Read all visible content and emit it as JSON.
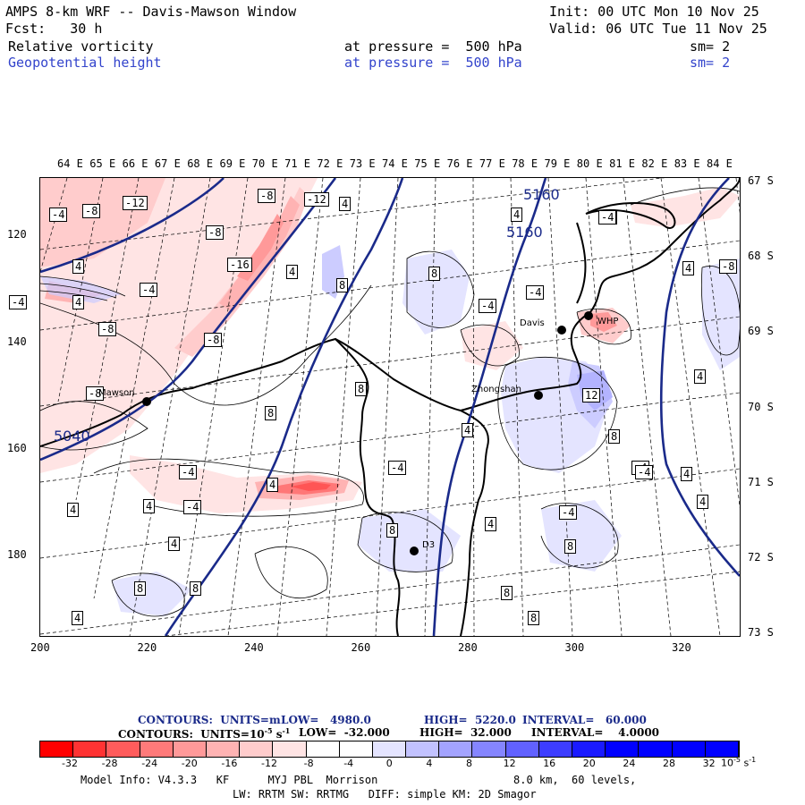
{
  "header": {
    "title": "AMPS 8-km WRF -- Davis-Mawson Window",
    "init": "Init: 00 UTC Mon 10 Nov 25",
    "fcst": "Fcst:   30 h",
    "valid": "Valid: 06 UTC Tue 11 Nov 25",
    "field1": "Relative vorticity",
    "field1_pressure": "at pressure =  500 hPa",
    "field1_sm": "sm= 2",
    "field2": "Geopotential height",
    "field2_pressure": "at pressure =  500 hPa",
    "field2_sm": "sm= 2"
  },
  "top_longitudes": [
    "64 E",
    "65 E",
    "66 E",
    "67 E",
    "68 E",
    "69 E",
    "70 E",
    "71 E",
    "72 E",
    "73 E",
    "74 E",
    "75 E",
    "76 E",
    "77 E",
    "78 E",
    "79 E",
    "80 E",
    "81 E",
    "82 E",
    "83 E",
    "84 E"
  ],
  "right_latitudes": [
    "67 S",
    "68 S",
    "69 S",
    "70 S",
    "71 S",
    "72 S",
    "73 S"
  ],
  "left_y_ticks": [
    "120",
    "140",
    "160",
    "180"
  ],
  "bottom_x_ticks": [
    "200",
    "220",
    "240",
    "260",
    "280",
    "300",
    "320"
  ],
  "stations": {
    "mawson": "Mawson",
    "davis": "Davis",
    "zhongshan": "Zhongshan",
    "whp": "WHP",
    "d3": "D3"
  },
  "height_labels": [
    "5160",
    "5160",
    "5040"
  ],
  "contour_labels": [
    "-4",
    "-8",
    "-12",
    "-8",
    "-12",
    "-8",
    "4",
    "4",
    "-4",
    "4",
    "-4",
    "-8",
    "-16",
    "4",
    "8",
    "8",
    "-4",
    "-4",
    "-8",
    "-8",
    "4",
    "-4",
    "-4",
    "4",
    "-4",
    "8",
    "8",
    "4",
    "4",
    "-4",
    "8",
    "12",
    "4",
    "8",
    "-4",
    "4",
    "4",
    "-4",
    "-8",
    "-4",
    "4",
    "8",
    "4",
    "-4",
    "8",
    "4",
    "8",
    "8",
    "8",
    "4",
    "4"
  ],
  "legend": {
    "line1": {
      "label": "CONTOURS:  UNITS=m",
      "low": "LOW=   4980.0",
      "high": "HIGH=  5220.0",
      "interval": "INTERVAL=   60.000"
    },
    "line2": {
      "label": "CONTOURS:  UNITS=10",
      "exp": "-5",
      "unit": "s",
      "uexp": "-1",
      "low": "LOW=  -32.000",
      "high": "HIGH=  32.000",
      "interval": "INTERVAL=    4.0000"
    },
    "colorbar_labels": [
      "-32",
      "-28",
      "-24",
      "-20",
      "-16",
      "-12",
      "-8",
      "-4",
      "0",
      "4",
      "8",
      "12",
      "16",
      "20",
      "24",
      "28",
      "32"
    ],
    "colorbar_unit": "10",
    "colorbar_unit_exp1": "-5",
    "colorbar_unit_s": "s",
    "colorbar_unit_exp2": "-1",
    "colors": [
      "#ff0000",
      "#ff3030",
      "#ff5555",
      "#ff7777",
      "#ff9999",
      "#ffb3b3",
      "#ffcccc",
      "#ffe4e4",
      "#ffffff",
      "#ffffff",
      "#e4e4ff",
      "#ccccff",
      "#b3b3ff",
      "#9999ff",
      "#7777ff",
      "#4444ff",
      "#0000ff"
    ]
  },
  "model_info": {
    "line1": "Model Info: V4.3.3   KF      MYJ PBL  Morrison",
    "line1b": "8.0 km,  60 levels,",
    "line2": "LW: RRTM SW: RRTMG   DIFF: simple KM: 2D Smagor"
  }
}
